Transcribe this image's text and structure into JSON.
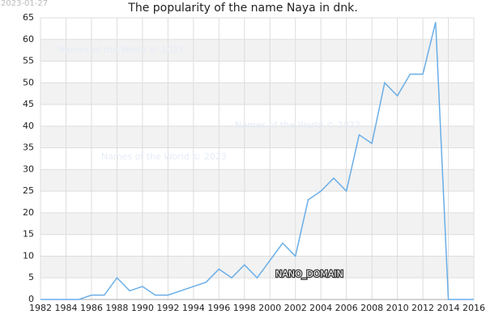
{
  "chart_data": {
    "type": "line",
    "title": "The popularity of the name Naya in dnk.",
    "date": "2023-01-27",
    "watermarks": [
      "Names of the World © 2023",
      "Names of the World © 2023",
      "Names of the World © 2023"
    ],
    "label": "NANO_DOMAIN",
    "x": [
      1982,
      1983,
      1984,
      1985,
      1986,
      1987,
      1988,
      1989,
      1990,
      1991,
      1992,
      1993,
      1994,
      1995,
      1996,
      1997,
      1998,
      1999,
      2000,
      2001,
      2002,
      2003,
      2004,
      2005,
      2006,
      2007,
      2008,
      2009,
      2010,
      2011,
      2012,
      2013,
      2014,
      2015,
      2016
    ],
    "series": [
      {
        "color": "#6aaee8",
        "values": [
          0,
          0,
          0,
          0,
          1,
          1,
          5,
          2,
          3,
          1,
          1,
          2,
          3,
          4,
          7,
          5,
          8,
          5,
          9,
          13,
          10,
          23,
          25,
          28,
          25,
          38,
          36,
          50,
          47,
          52,
          52,
          64,
          0,
          0,
          0
        ]
      }
    ],
    "xlim": [
      1982,
      2016
    ],
    "xticks": [
      1982,
      1984,
      1986,
      1988,
      1990,
      1992,
      1994,
      1996,
      1998,
      2000,
      2002,
      2004,
      2006,
      2008,
      2010,
      2012,
      2014,
      2016
    ],
    "ylim": [
      0,
      65
    ],
    "yticks": [
      0,
      5,
      10,
      15,
      20,
      25,
      30,
      35,
      40,
      45,
      50,
      55,
      60,
      65
    ],
    "grid": true
  }
}
